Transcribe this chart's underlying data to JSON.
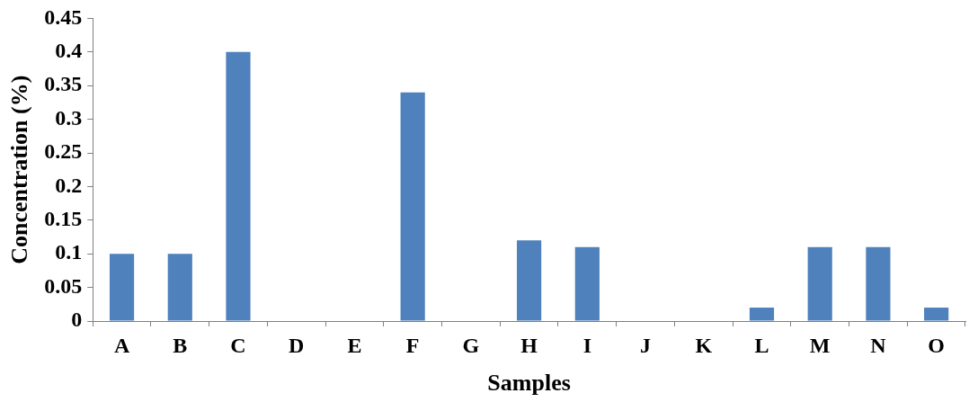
{
  "chart_data": {
    "type": "bar",
    "xlabel": "Samples",
    "ylabel": "Concentration (%)",
    "categories": [
      "A",
      "B",
      "C",
      "D",
      "E",
      "F",
      "G",
      "H",
      "I",
      "J",
      "K",
      "L",
      "M",
      "N",
      "O"
    ],
    "values": [
      0.1,
      0.1,
      0.4,
      0,
      0,
      0.34,
      0,
      0.12,
      0.11,
      0,
      0,
      0.02,
      0.11,
      0.11,
      0.02
    ],
    "color": "#4f81bd",
    "ylim": [
      0,
      0.45
    ],
    "yticks": [
      0,
      0.05,
      0.1,
      0.15,
      0.2,
      0.25,
      0.3,
      0.35,
      0.4,
      0.45
    ],
    "grid": false
  }
}
